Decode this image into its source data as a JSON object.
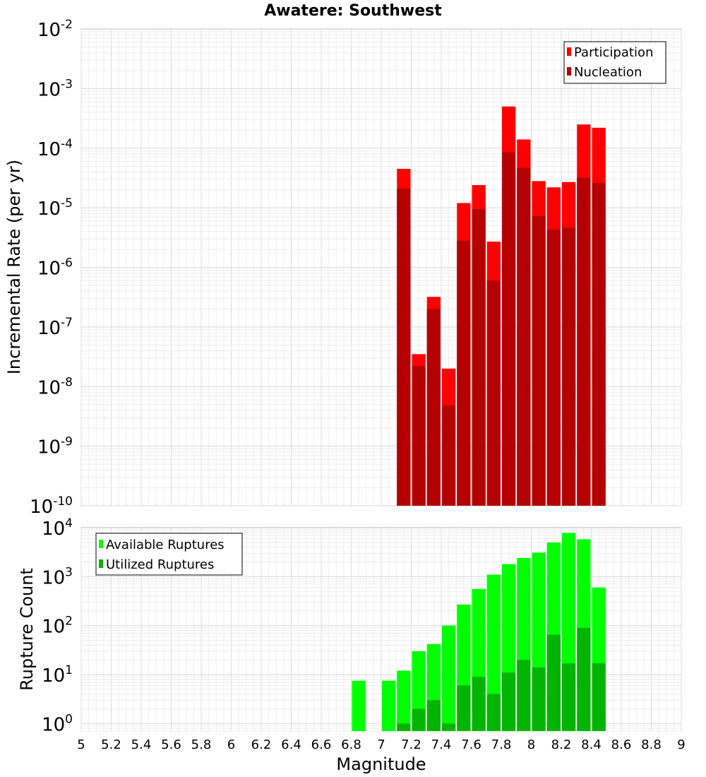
{
  "chart_data": [
    {
      "type": "bar",
      "title": "Awatere: Southwest",
      "xlabel": "",
      "ylabel": "Incremental Rate (per yr)",
      "xlim": [
        5,
        9
      ],
      "ylim": [
        1e-10,
        0.01
      ],
      "yscale": "log",
      "grid": true,
      "legend_position": "top-right",
      "bin_width": 0.1,
      "x": [
        7.15,
        7.25,
        7.35,
        7.45,
        7.55,
        7.65,
        7.75,
        7.85,
        7.95,
        8.05,
        8.15,
        8.25,
        8.35,
        8.45
      ],
      "series": [
        {
          "name": "Participation",
          "color": "#ff0000",
          "values": [
            4.5e-05,
            3.5e-08,
            3.2e-07,
            2e-08,
            1.2e-05,
            2.4e-05,
            2.7e-06,
            0.0005,
            0.00014,
            2.8e-05,
            2.2e-05,
            2.7e-05,
            0.00025,
            0.00022
          ]
        },
        {
          "name": "Nucleation",
          "color": "#b40000",
          "values": [
            2.1e-05,
            2.2e-08,
            2e-07,
            4.8e-09,
            2.8e-06,
            9.5e-06,
            6e-07,
            8.5e-05,
            4.7e-05,
            7.3e-06,
            4.3e-06,
            4.6e-06,
            3.2e-05,
            2.6e-05
          ]
        }
      ]
    },
    {
      "type": "bar",
      "title": "",
      "xlabel": "Magnitude",
      "ylabel": "Rupture Count",
      "xlim": [
        5,
        9
      ],
      "ylim": [
        0.7,
        10000
      ],
      "yscale": "log",
      "grid": true,
      "legend_position": "top-left",
      "bin_width": 0.1,
      "x": [
        6.85,
        6.95,
        7.05,
        7.15,
        7.25,
        7.35,
        7.45,
        7.55,
        7.65,
        7.75,
        7.85,
        7.95,
        8.05,
        8.15,
        8.25,
        8.35,
        8.45
      ],
      "series": [
        {
          "name": "Available Ruptures",
          "color": "#00ff00",
          "values": [
            7.5,
            0,
            7.5,
            12,
            30,
            42,
            100,
            270,
            560,
            1100,
            1800,
            2400,
            3100,
            5000,
            7800,
            5800,
            600
          ]
        },
        {
          "name": "Utilized Ruptures",
          "color": "#00b400",
          "values": [
            0,
            0,
            0,
            1,
            2,
            3,
            1,
            6,
            9,
            4,
            11,
            20,
            14,
            65,
            17,
            90,
            17
          ]
        }
      ]
    }
  ],
  "axis_text": {
    "title": "Awatere: Southwest",
    "top_ylabel": "Incremental Rate (per yr)",
    "bottom_ylabel": "Rupture Count",
    "xlabel": "Magnitude",
    "x_ticks": [
      "5",
      "5.2",
      "5.4",
      "5.6",
      "5.8",
      "6",
      "6.2",
      "6.4",
      "6.6",
      "6.8",
      "7",
      "7.2",
      "7.4",
      "7.6",
      "7.8",
      "8",
      "8.2",
      "8.4",
      "8.6",
      "8.8",
      "9"
    ],
    "top_y_exponents": [
      "-10",
      "-9",
      "-8",
      "-7",
      "-6",
      "-5",
      "-4",
      "-3",
      "-2"
    ],
    "bottom_y_exponents": [
      "0",
      "1",
      "2",
      "3",
      "4"
    ],
    "tick_base": "10"
  },
  "legend_top": [
    "Participation",
    "Nucleation"
  ],
  "legend_bottom": [
    "Available Ruptures",
    "Utilized Ruptures"
  ]
}
